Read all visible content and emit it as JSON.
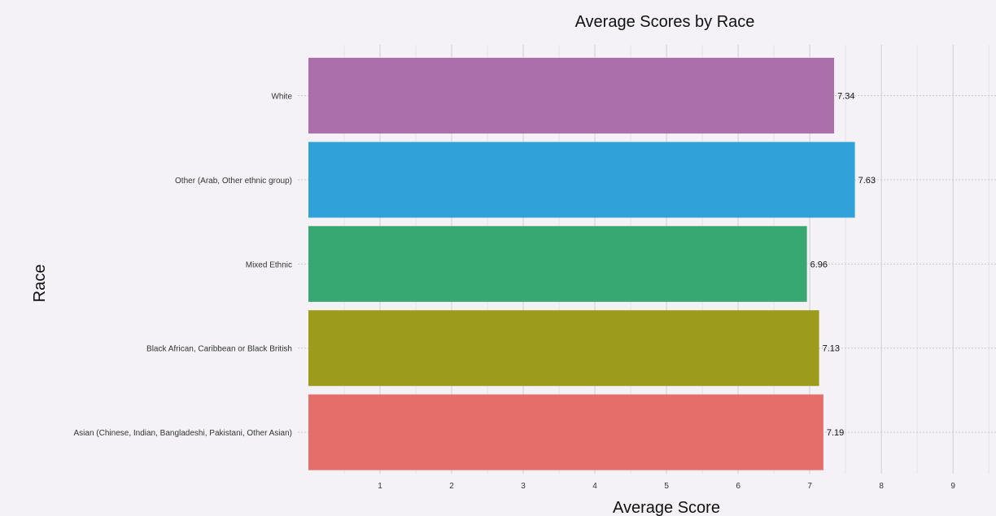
{
  "chart_data": {
    "type": "bar",
    "orientation": "horizontal",
    "title": "Average Scores by Race",
    "xlabel": "Average Score",
    "ylabel": "Race",
    "xlim": [
      0,
      9.6
    ],
    "xticks": [
      1,
      2,
      3,
      4,
      5,
      6,
      7,
      8,
      9
    ],
    "grid": true,
    "legend": "none",
    "categories": [
      "White",
      "Other (Arab, Other ethnic group)",
      "Mixed Ethnic",
      "Black African, Caribbean or Black British",
      "Asian (Chinese, Indian, Bangladeshi, Pakistani, Other Asian)"
    ],
    "values": [
      7.34,
      7.63,
      6.96,
      7.13,
      7.19
    ],
    "data_labels": [
      "7.34",
      "7.63",
      "6.96",
      "7.13",
      "7.19"
    ],
    "colors": [
      "#ab6fac",
      "#30a2d9",
      "#38a873",
      "#9c9b1b",
      "#e56d6a"
    ]
  }
}
